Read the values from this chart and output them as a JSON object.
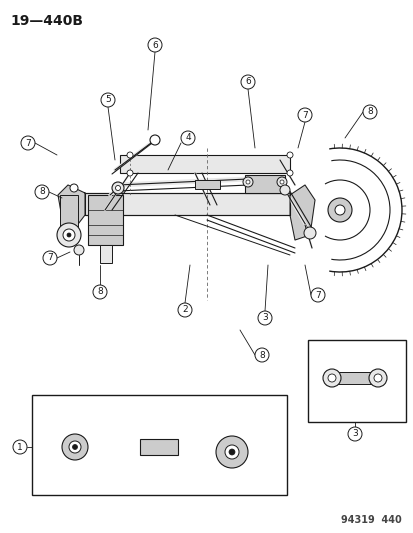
{
  "title": "19—440B",
  "footer": "94319  440",
  "bg_color": "#ffffff",
  "title_fontsize": 10,
  "footer_fontsize": 7,
  "fig_width": 4.14,
  "fig_height": 5.33,
  "dpi": 100,
  "line_color": "#1a1a1a",
  "fill_light": "#e8e8e8",
  "fill_mid": "#cccccc",
  "fill_dark": "#aaaaaa"
}
